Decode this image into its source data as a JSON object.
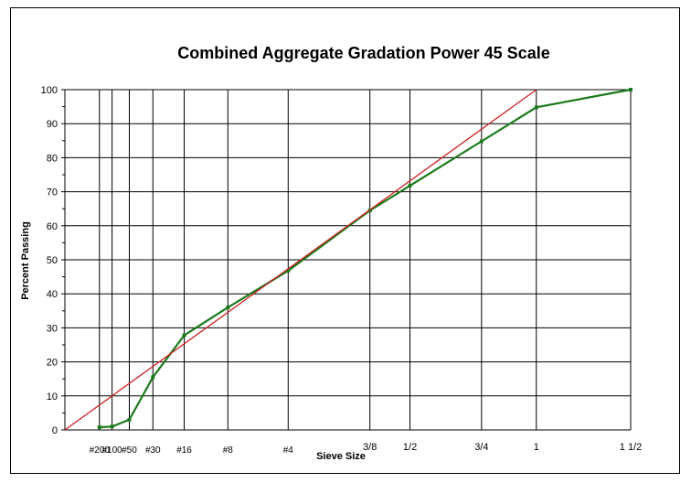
{
  "chart_data": {
    "type": "line",
    "title": "Combined Aggregate Gradation Power 45 Scale",
    "xlabel": "Sieve Size",
    "ylabel": "Percent Passing",
    "ylim": [
      0,
      100
    ],
    "yticks": [
      0,
      10,
      20,
      30,
      40,
      50,
      60,
      70,
      80,
      90,
      100
    ],
    "x_scale": "power 0.45",
    "grid": true,
    "x_sieves": [
      {
        "label": "#200",
        "size_mm": 0.075
      },
      {
        "label": "#100",
        "size_mm": 0.15
      },
      {
        "label": "#50",
        "size_mm": 0.3
      },
      {
        "label": "#30",
        "size_mm": 0.6
      },
      {
        "label": "#16",
        "size_mm": 1.18
      },
      {
        "label": "#8",
        "size_mm": 2.36
      },
      {
        "label": "#4",
        "size_mm": 4.75
      },
      {
        "label": "3/8",
        "size_mm": 9.5
      },
      {
        "label": "1/2",
        "size_mm": 12.5
      },
      {
        "label": "3/4",
        "size_mm": 19.0
      },
      {
        "label": "1",
        "size_mm": 25.0
      },
      {
        "label": "1 1/2",
        "size_mm": 37.5
      }
    ],
    "series": [
      {
        "color": "#1a7a1a",
        "points": [
          {
            "x": "#200",
            "y": 0.8
          },
          {
            "x": "#100",
            "y": 1.0
          },
          {
            "x": "#50",
            "y": 3.0
          },
          {
            "x": "#30",
            "y": 15.5
          },
          {
            "x": "#16",
            "y": 27.8
          },
          {
            "x": "#8",
            "y": 36.0
          },
          {
            "x": "#4",
            "y": 46.8
          },
          {
            "x": "3/8",
            "y": 64.5
          },
          {
            "x": "1/2",
            "y": 71.8
          },
          {
            "x": "3/4",
            "y": 84.8
          },
          {
            "x": "1",
            "y": 94.8
          },
          {
            "x": "1 1/2",
            "y": 100
          }
        ]
      },
      {
        "color": "#cc2222",
        "points": [
          {
            "x": 0,
            "y": 0
          },
          {
            "x": "1",
            "y": 100
          }
        ]
      }
    ]
  }
}
